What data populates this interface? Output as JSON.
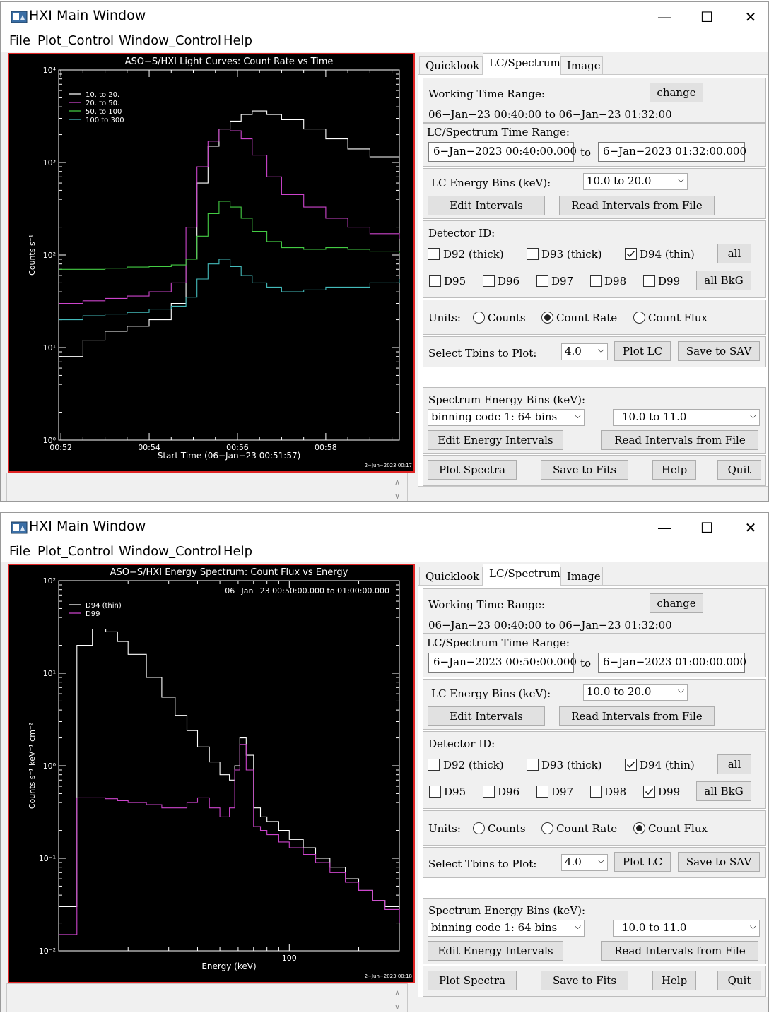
{
  "windows": [
    {
      "title": "HXI Main Window",
      "controls": {
        "minimize": "—",
        "maximize": "☐",
        "close": "✕"
      },
      "menu": [
        "File",
        "Plot_Control",
        "Window_Control",
        "Help"
      ],
      "plot": {
        "title": "ASO−S/HXI Light Curves:  Count Rate vs Time",
        "ylabel": "Counts s⁻¹",
        "xlabel": "Start Time (06−Jan−23 00:51:57)",
        "ytick_labels": [
          "10⁴",
          "10³",
          "10²",
          "10¹",
          "10⁰"
        ],
        "xtick_labels": [
          "00:52",
          "00:54",
          "00:56",
          "00:58"
        ],
        "legend": [
          "10. to 20.",
          "20. to 50.",
          "50. to 100",
          "100 to 300"
        ],
        "stamp": "2−Jun−2023 00:17",
        "annotation": ""
      },
      "tabs": [
        "Quicklook",
        "LC/Spectrum",
        "Image"
      ],
      "panel": {
        "working_label": "Working Time Range:",
        "change_button": "change",
        "working_range": "06−Jan−23 00:40:00 to 06−Jan−23 01:32:00",
        "lc_spec_label": "LC/Spectrum Time Range:",
        "start_time": "6−Jan−2023 00:40:00.000",
        "to_label": "to",
        "end_time": "6−Jan−2023 01:32:00.000",
        "lc_energy_label": "LC Energy Bins (keV):",
        "lc_energy_value": "10.0 to  20.0",
        "edit_intervals": "Edit Intervals",
        "read_intervals": "Read Intervals from File",
        "detector_label": "Detector ID:",
        "detectors": [
          {
            "label": "D92 (thick)",
            "checked": false
          },
          {
            "label": "D93 (thick)",
            "checked": false
          },
          {
            "label": "D94 (thin)",
            "checked": true
          },
          {
            "label": "D95",
            "checked": false
          },
          {
            "label": "D96",
            "checked": false
          },
          {
            "label": "D97",
            "checked": false
          },
          {
            "label": "D98",
            "checked": false
          },
          {
            "label": "D99",
            "checked": false
          }
        ],
        "all_button": "all",
        "all_bkg_button": "all BkG",
        "units_label": "Units:",
        "units": [
          "Counts",
          "Count Rate",
          "Count Flux"
        ],
        "units_selected": "Count Rate",
        "tbins_label": "Select Tbins to Plot:",
        "tbins_value": "4.0",
        "plot_lc": "Plot LC",
        "save_sav": "Save to SAV",
        "spec_energy_label": "Spectrum Energy Bins (keV):",
        "binning_value": "binning code 1: 64 bins",
        "spec_range_value": "10.0 to 11.0",
        "edit_energy": "Edit Energy Intervals",
        "read_intervals2": "Read Intervals from File",
        "plot_spectra": "Plot Spectra",
        "save_fits": "Save to Fits",
        "help": "Help",
        "quit": "Quit"
      }
    },
    {
      "title": "HXI Main Window",
      "controls": {
        "minimize": "—",
        "maximize": "☐",
        "close": "✕"
      },
      "menu": [
        "File",
        "Plot_Control",
        "Window_Control",
        "Help"
      ],
      "plot": {
        "title": "ASO−S/HXI Energy Spectrum:  Count Flux vs Energy",
        "ylabel": "Counts s⁻¹ keV⁻¹ cm⁻²",
        "xlabel": "Energy (keV)",
        "ytick_labels": [
          "10²",
          "10¹",
          "10⁰",
          "10⁻¹",
          "10⁻²"
        ],
        "xtick_labels": [
          "100"
        ],
        "legend": [
          "D94 (thin)",
          "D99"
        ],
        "stamp": "2−Jun−2023 00:18",
        "annotation": "06−Jan−23 00:50:00.000 to 01:00:00.000"
      },
      "tabs": [
        "Quicklook",
        "LC/Spectrum",
        "Image"
      ],
      "panel": {
        "working_label": "Working Time Range:",
        "change_button": "change",
        "working_range": "06−Jan−23 00:40:00 to 06−Jan−23 01:32:00",
        "lc_spec_label": "LC/Spectrum Time Range:",
        "start_time": "6−Jan−2023 00:50:00.000",
        "to_label": "to",
        "end_time": "6−Jan−2023 01:00:00.000",
        "lc_energy_label": "LC Energy Bins (keV):",
        "lc_energy_value": "10.0 to  20.0",
        "edit_intervals": "Edit Intervals",
        "read_intervals": "Read Intervals from File",
        "detector_label": "Detector ID:",
        "detectors": [
          {
            "label": "D92 (thick)",
            "checked": false
          },
          {
            "label": "D93 (thick)",
            "checked": false
          },
          {
            "label": "D94 (thin)",
            "checked": true
          },
          {
            "label": "D95",
            "checked": false
          },
          {
            "label": "D96",
            "checked": false
          },
          {
            "label": "D97",
            "checked": false
          },
          {
            "label": "D98",
            "checked": false
          },
          {
            "label": "D99",
            "checked": true
          }
        ],
        "all_button": "all",
        "all_bkg_button": "all BkG",
        "units_label": "Units:",
        "units": [
          "Counts",
          "Count Rate",
          "Count Flux"
        ],
        "units_selected": "Count Flux",
        "tbins_label": "Select Tbins to Plot:",
        "tbins_value": "4.0",
        "plot_lc": "Plot LC",
        "save_sav": "Save to SAV",
        "spec_energy_label": "Spectrum Energy Bins (keV):",
        "binning_value": "binning code 1: 64 bins",
        "spec_range_value": "10.0 to 11.0",
        "edit_energy": "Edit Energy Intervals",
        "read_intervals2": "Read Intervals from File",
        "plot_spectra": "Plot Spectra",
        "save_fits": "Save to Fits",
        "help": "Help",
        "quit": "Quit"
      }
    }
  ],
  "chart_data": [
    {
      "type": "line",
      "title": "ASO−S/HXI Light Curves:  Count Rate vs Time",
      "xlabel": "Start Time (06−Jan−23 00:51:57)",
      "ylabel": "Counts s⁻¹",
      "yscale": "log",
      "ylim": [
        1,
        10000
      ],
      "xlim": [
        "00:51:57",
        "00:59:40"
      ],
      "grid": false,
      "legend_position": "top-left",
      "x": [
        "00:51:57",
        "00:52:30",
        "00:53:00",
        "00:53:30",
        "00:54:00",
        "00:54:30",
        "00:54:50",
        "00:55:05",
        "00:55:20",
        "00:55:35",
        "00:55:50",
        "00:56:05",
        "00:56:20",
        "00:56:40",
        "00:57:00",
        "00:57:30",
        "00:58:00",
        "00:58:30",
        "00:59:00",
        "00:59:40"
      ],
      "series": [
        {
          "name": "10. to 20.",
          "color": "#ffffff",
          "values": [
            8,
            12,
            15,
            17,
            20,
            30,
            90,
            600,
            1500,
            2300,
            2800,
            3300,
            3600,
            3300,
            2900,
            2300,
            1800,
            1400,
            1150,
            900
          ]
        },
        {
          "name": "20. to 50.",
          "color": "#cc44cc",
          "values": [
            30,
            32,
            34,
            36,
            40,
            50,
            200,
            900,
            1700,
            2300,
            2200,
            1800,
            1200,
            700,
            450,
            330,
            250,
            200,
            170,
            150
          ]
        },
        {
          "name": "50. to 100",
          "color": "#44cc44",
          "values": [
            70,
            70,
            72,
            74,
            75,
            78,
            90,
            160,
            280,
            380,
            330,
            250,
            180,
            140,
            120,
            115,
            120,
            115,
            110,
            105
          ]
        },
        {
          "name": "100 to 300",
          "color": "#44bbbb",
          "values": [
            20,
            22,
            23,
            24,
            26,
            28,
            35,
            55,
            80,
            90,
            75,
            60,
            50,
            45,
            40,
            42,
            45,
            45,
            50,
            55
          ]
        }
      ]
    },
    {
      "type": "line",
      "title": "ASO−S/HXI Energy Spectrum:  Count Flux vs Energy",
      "xlabel": "Energy (keV)",
      "ylabel": "Counts s⁻¹ keV⁻¹ cm⁻²",
      "xscale": "log",
      "yscale": "log",
      "ylim": [
        0.01,
        100
      ],
      "xlim": [
        10,
        300
      ],
      "grid": false,
      "legend_position": "top-left",
      "x": [
        10,
        12,
        14,
        16,
        18,
        20,
        24,
        28,
        32,
        36,
        40,
        45,
        50,
        55,
        58,
        61,
        65,
        70,
        75,
        80,
        90,
        100,
        115,
        130,
        150,
        175,
        200,
        230,
        260,
        300
      ],
      "series": [
        {
          "name": "D94 (thin)",
          "color": "#ffffff",
          "values": [
            0.03,
            20,
            30,
            28,
            22,
            16,
            9,
            5.5,
            3.5,
            2.4,
            1.6,
            1.1,
            0.8,
            0.7,
            1.0,
            2.0,
            1.3,
            0.35,
            0.28,
            0.25,
            0.2,
            0.16,
            0.13,
            0.1,
            0.08,
            0.06,
            0.045,
            0.035,
            0.03,
            0.02
          ]
        },
        {
          "name": "D99",
          "color": "#cc44cc",
          "values": [
            0.015,
            0.45,
            0.45,
            0.44,
            0.42,
            0.4,
            0.38,
            0.35,
            0.35,
            0.4,
            0.45,
            0.35,
            0.28,
            0.35,
            0.9,
            1.7,
            0.9,
            0.22,
            0.2,
            0.18,
            0.15,
            0.13,
            0.11,
            0.09,
            0.07,
            0.055,
            0.045,
            0.035,
            0.028,
            0.02
          ]
        }
      ]
    }
  ]
}
